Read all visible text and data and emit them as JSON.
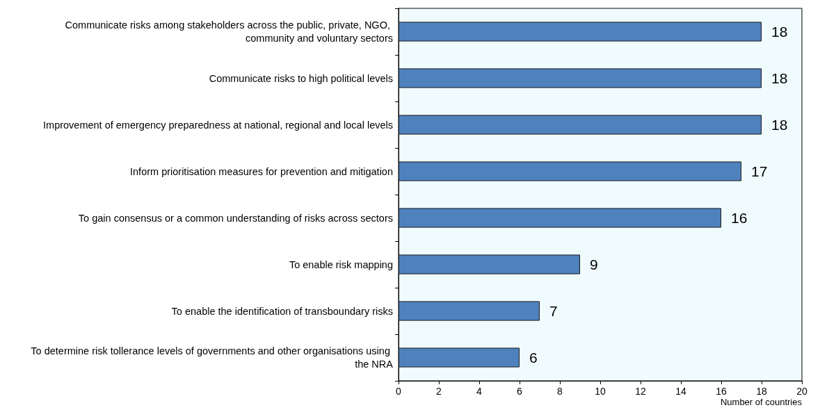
{
  "chart_data": {
    "type": "bar",
    "orientation": "horizontal",
    "xlabel": "Number of countries",
    "categories": [
      "Communicate risks among stakeholders across the public, private, NGO, community and voluntary sectors",
      "Communicate risks to high political levels",
      "Improvement of emergency preparedness at national, regional and local levels",
      "Inform prioritisation measures for prevention and mitigation",
      "To gain consensus or a common understanding of risks across sectors",
      "To enable risk mapping",
      "To enable the identification of transboundary risks",
      "To determine risk tollerance levels of governments and other organisations using the NRA"
    ],
    "values": [
      18,
      18,
      18,
      17,
      16,
      9,
      7,
      6
    ],
    "color": "#4f81bd",
    "data_labels": true,
    "xlim": [
      0,
      20
    ],
    "xticks": [
      0,
      2,
      4,
      6,
      8,
      10,
      12,
      14,
      16,
      18,
      20
    ],
    "grid": false
  }
}
